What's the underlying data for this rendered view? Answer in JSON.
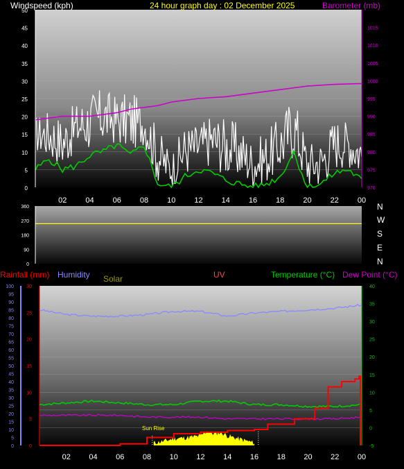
{
  "header": {
    "title": "24 hour graph day : 02 December 2025",
    "left_label": "Windspeed (kph)",
    "right_label": "Barometer (mb)"
  },
  "colors": {
    "title": "#ffff00",
    "barometer": "#cc00cc",
    "windspeed": "#ffffff",
    "wind_avg": "#00cc00",
    "direction": "#ffff00",
    "rainfall": "#ff0000",
    "humidity": "#8888ff",
    "solar": "#ffff00",
    "uv": "#ff4444",
    "temperature": "#00cc00",
    "dewpoint": "#cc00cc"
  },
  "bottom_labels": {
    "rainfall": "Rainfall (mm)",
    "humidity": "Humidity",
    "solar": "Solar",
    "uv": "UV",
    "temperature": "Temperature (°C)",
    "dewpoint": "Dew Point (°C)",
    "sunrise": "Sun Rise"
  },
  "compass": [
    "N",
    "W",
    "S",
    "E",
    "N"
  ],
  "chart_data": [
    {
      "type": "line",
      "ylim": [
        0,
        50
      ],
      "y2lim": [
        970,
        1020
      ],
      "x_ticks": [
        "02",
        "04",
        "06",
        "08",
        "10",
        "12",
        "14",
        "16",
        "18",
        "20",
        "22",
        "00"
      ],
      "y_ticks": [
        "0",
        "5",
        "10",
        "15",
        "20",
        "25",
        "30",
        "35",
        "40",
        "45",
        "50"
      ],
      "y2_ticks": [
        "970",
        "975",
        "980",
        "985",
        "990",
        "995",
        "1000",
        "1005",
        "1010",
        "1015"
      ],
      "series": [
        {
          "name": "Barometer (mb)",
          "axis": "right",
          "x": [
            0,
            2,
            4,
            6,
            7,
            8,
            9,
            10,
            12,
            14,
            16,
            18,
            19,
            20,
            22,
            24
          ],
          "y": [
            989,
            990,
            990,
            991,
            992,
            992.5,
            993,
            994,
            995,
            995.5,
            996.5,
            997.5,
            998,
            998.5,
            999,
            999.2
          ]
        },
        {
          "name": "Windspeed (kph)",
          "axis": "left",
          "x": [
            0,
            1,
            2,
            3,
            4,
            5,
            6,
            7,
            8,
            9,
            10,
            11,
            12,
            13,
            14,
            15,
            16,
            17,
            18,
            19,
            20,
            21,
            22,
            23,
            24
          ],
          "gust_high": [
            20,
            22,
            20,
            24,
            27,
            28,
            26,
            27,
            24,
            17,
            10,
            18,
            18,
            21,
            20,
            18,
            13,
            16,
            20,
            27,
            13,
            14,
            20,
            19,
            17
          ],
          "gust_low": [
            10,
            8,
            5,
            10,
            10,
            12,
            12,
            10,
            12,
            1,
            0,
            3,
            5,
            6,
            3,
            2,
            0,
            1,
            4,
            8,
            0,
            0,
            5,
            6,
            2
          ],
          "average": [
            5,
            8,
            5,
            6,
            9,
            10,
            12,
            9,
            12,
            1,
            0,
            3,
            5,
            4,
            2,
            1,
            0,
            1,
            3,
            10,
            0,
            1,
            4,
            5,
            2
          ]
        }
      ]
    },
    {
      "type": "line",
      "ylim": [
        0,
        360
      ],
      "y_ticks": [
        "0",
        "90",
        "180",
        "270",
        "360"
      ],
      "series": [
        {
          "name": "Wind direction",
          "x": [
            0,
            24
          ],
          "y": [
            250,
            250
          ]
        }
      ]
    },
    {
      "type": "line",
      "x_ticks": [
        "02",
        "04",
        "06",
        "08",
        "10",
        "12",
        "14",
        "16",
        "18",
        "20",
        "22",
        "00"
      ],
      "humidity_ticks": [
        "0",
        "5",
        "10",
        "15",
        "20",
        "25",
        "30",
        "35",
        "40",
        "45",
        "50",
        "55",
        "60",
        "65",
        "70",
        "75",
        "80",
        "85",
        "90",
        "95",
        "100"
      ],
      "rain_ticks": [
        "0",
        "5",
        "10",
        "15",
        "20",
        "25",
        "30"
      ],
      "temp_ticks": [
        "-5",
        "0",
        "5",
        "10",
        "15",
        "20",
        "25",
        "30",
        "35",
        "40"
      ],
      "humidity_ylim": [
        0,
        100
      ],
      "rain_ylim": [
        0,
        30
      ],
      "temp_ylim": [
        -5,
        40
      ],
      "series": [
        {
          "name": "Humidity",
          "axis": "humidity",
          "x": [
            0,
            2,
            4,
            6,
            8,
            10,
            12,
            14,
            16,
            18,
            20,
            22,
            24
          ],
          "y": [
            85,
            82,
            81,
            81,
            82,
            84,
            84,
            81,
            83,
            84,
            85,
            86,
            88
          ]
        },
        {
          "name": "Temperature (°C)",
          "axis": "temp",
          "x": [
            0,
            2,
            4,
            6,
            8,
            10,
            12,
            14,
            16,
            18,
            20,
            22,
            24
          ],
          "y": [
            6.5,
            7,
            7.5,
            7,
            6.5,
            6.5,
            7.5,
            7.5,
            6.5,
            6.5,
            6,
            6,
            6.5
          ]
        },
        {
          "name": "Dew Point (°C)",
          "axis": "temp",
          "x": [
            0,
            2,
            4,
            6,
            8,
            10,
            12,
            14,
            16,
            18,
            20,
            22,
            24
          ],
          "y": [
            3.5,
            3.5,
            3.5,
            3.5,
            3,
            3,
            3,
            2.5,
            2.5,
            2.5,
            2.5,
            2.5,
            3
          ]
        },
        {
          "name": "Rainfall (mm)",
          "axis": "rain",
          "x": [
            0,
            4,
            6,
            8,
            10,
            12,
            14,
            16,
            17,
            19,
            20.5,
            21.5,
            22.5,
            23.5,
            23.8,
            23.9
          ],
          "y": [
            0,
            0,
            0.3,
            1.5,
            2.2,
            2.5,
            2.8,
            3,
            4,
            5,
            7,
            11,
            12,
            12.5,
            13,
            0
          ]
        },
        {
          "name": "Solar",
          "axis": "temp",
          "x": [
            8.5,
            9.3,
            10,
            11,
            12,
            12.5,
            13,
            13.5,
            14,
            14.5,
            15,
            15.5,
            16
          ],
          "y": [
            -5,
            -4.5,
            -3.8,
            -3.5,
            -3,
            -1.5,
            -2.5,
            -2,
            -3,
            -3.5,
            -4,
            -4.5,
            -5
          ]
        }
      ]
    }
  ]
}
